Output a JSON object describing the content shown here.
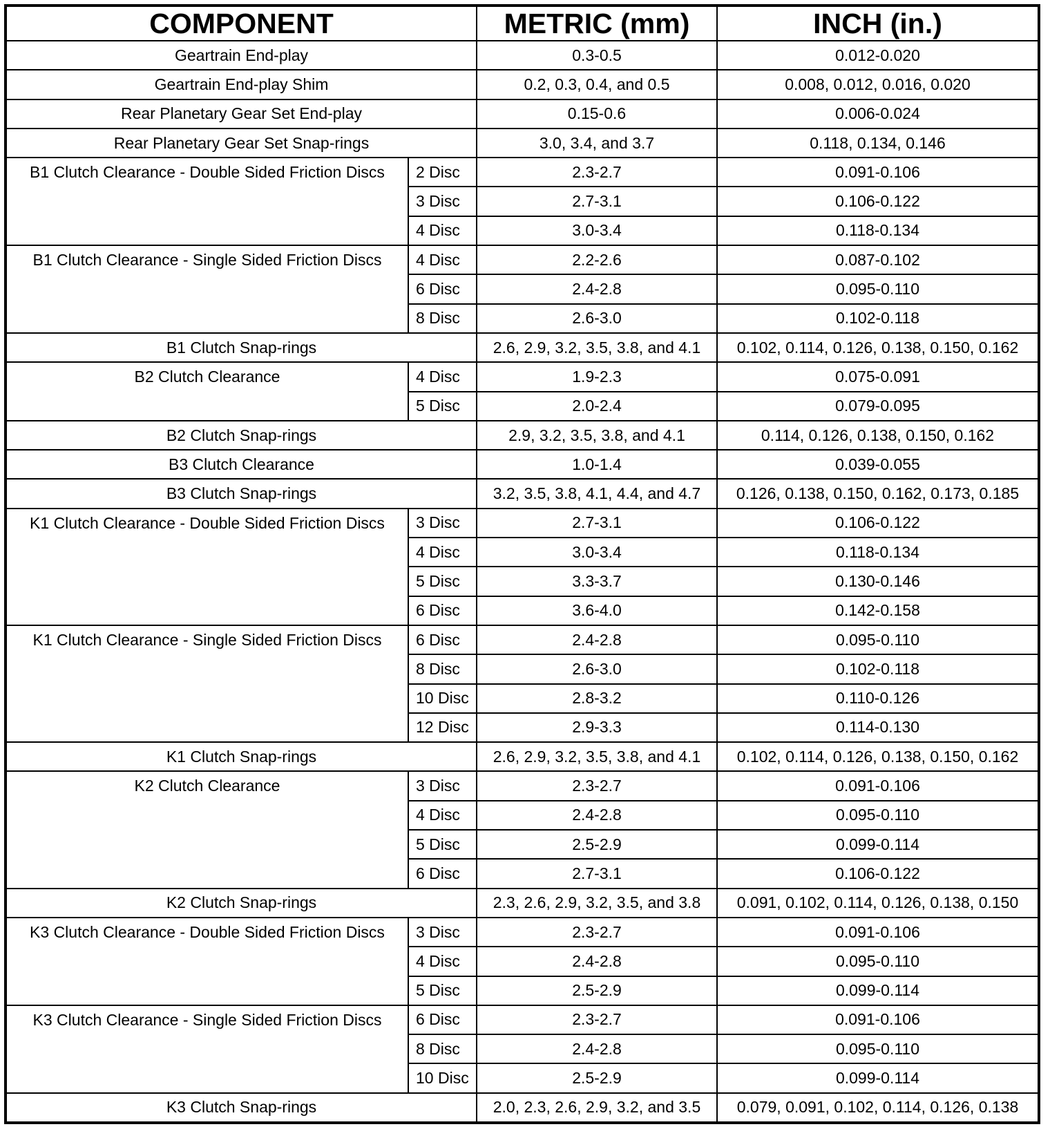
{
  "headers": {
    "component": "COMPONENT",
    "metric": "METRIC (mm)",
    "inch": "INCH (in.)"
  },
  "groups": [
    {
      "component": "Geartrain End-play",
      "rows": [
        {
          "disc": null,
          "metric": "0.3-0.5",
          "inch": "0.012-0.020"
        }
      ]
    },
    {
      "component": "Geartrain End-play Shim",
      "rows": [
        {
          "disc": null,
          "metric": "0.2, 0.3, 0.4, and 0.5",
          "inch": "0.008, 0.012, 0.016, 0.020"
        }
      ]
    },
    {
      "component": "Rear Planetary Gear Set End-play",
      "rows": [
        {
          "disc": null,
          "metric": "0.15-0.6",
          "inch": "0.006-0.024"
        }
      ]
    },
    {
      "component": "Rear Planetary Gear Set Snap-rings",
      "rows": [
        {
          "disc": null,
          "metric": "3.0, 3.4, and 3.7",
          "inch": "0.118, 0.134, 0.146"
        }
      ]
    },
    {
      "component": "B1 Clutch Clearance - Double Sided Friction Discs",
      "rows": [
        {
          "disc": "2 Disc",
          "metric": "2.3-2.7",
          "inch": "0.091-0.106"
        },
        {
          "disc": "3 Disc",
          "metric": "2.7-3.1",
          "inch": "0.106-0.122"
        },
        {
          "disc": "4 Disc",
          "metric": "3.0-3.4",
          "inch": "0.118-0.134"
        }
      ]
    },
    {
      "component": "B1 Clutch Clearance - Single Sided Friction Discs",
      "rows": [
        {
          "disc": "4 Disc",
          "metric": "2.2-2.6",
          "inch": "0.087-0.102"
        },
        {
          "disc": "6 Disc",
          "metric": "2.4-2.8",
          "inch": "0.095-0.110"
        },
        {
          "disc": "8 Disc",
          "metric": "2.6-3.0",
          "inch": "0.102-0.118"
        }
      ]
    },
    {
      "component": "B1 Clutch Snap-rings",
      "rows": [
        {
          "disc": null,
          "metric": "2.6, 2.9, 3.2, 3.5, 3.8, and 4.1",
          "inch": "0.102, 0.114, 0.126, 0.138, 0.150, 0.162"
        }
      ]
    },
    {
      "component": "B2 Clutch Clearance",
      "rows": [
        {
          "disc": "4 Disc",
          "metric": "1.9-2.3",
          "inch": "0.075-0.091"
        },
        {
          "disc": "5 Disc",
          "metric": "2.0-2.4",
          "inch": "0.079-0.095"
        }
      ]
    },
    {
      "component": "B2 Clutch Snap-rings",
      "rows": [
        {
          "disc": null,
          "metric": "2.9, 3.2, 3.5, 3.8, and 4.1",
          "inch": "0.114, 0.126, 0.138, 0.150, 0.162"
        }
      ]
    },
    {
      "component": "B3 Clutch Clearance",
      "rows": [
        {
          "disc": null,
          "metric": "1.0-1.4",
          "inch": "0.039-0.055"
        }
      ]
    },
    {
      "component": "B3 Clutch Snap-rings",
      "rows": [
        {
          "disc": null,
          "metric": "3.2, 3.5, 3.8, 4.1, 4.4, and 4.7",
          "inch": "0.126, 0.138, 0.150, 0.162, 0.173, 0.185"
        }
      ]
    },
    {
      "component": "K1 Clutch Clearance - Double Sided Friction Discs",
      "rows": [
        {
          "disc": "3 Disc",
          "metric": "2.7-3.1",
          "inch": "0.106-0.122"
        },
        {
          "disc": "4 Disc",
          "metric": "3.0-3.4",
          "inch": "0.118-0.134"
        },
        {
          "disc": "5 Disc",
          "metric": "3.3-3.7",
          "inch": "0.130-0.146"
        },
        {
          "disc": "6 Disc",
          "metric": "3.6-4.0",
          "inch": "0.142-0.158"
        }
      ]
    },
    {
      "component": "K1 Clutch Clearance - Single Sided Friction Discs",
      "rows": [
        {
          "disc": "6 Disc",
          "metric": "2.4-2.8",
          "inch": "0.095-0.110"
        },
        {
          "disc": "8 Disc",
          "metric": "2.6-3.0",
          "inch": "0.102-0.118"
        },
        {
          "disc": "10 Disc",
          "metric": "2.8-3.2",
          "inch": "0.110-0.126"
        },
        {
          "disc": "12 Disc",
          "metric": "2.9-3.3",
          "inch": "0.114-0.130"
        }
      ]
    },
    {
      "component": "K1 Clutch Snap-rings",
      "rows": [
        {
          "disc": null,
          "metric": "2.6, 2.9, 3.2, 3.5, 3.8, and 4.1",
          "inch": "0.102, 0.114, 0.126, 0.138, 0.150, 0.162"
        }
      ]
    },
    {
      "component": "K2 Clutch Clearance",
      "rows": [
        {
          "disc": "3 Disc",
          "metric": "2.3-2.7",
          "inch": "0.091-0.106"
        },
        {
          "disc": "4 Disc",
          "metric": "2.4-2.8",
          "inch": "0.095-0.110"
        },
        {
          "disc": "5 Disc",
          "metric": "2.5-2.9",
          "inch": "0.099-0.114"
        },
        {
          "disc": "6 Disc",
          "metric": "2.7-3.1",
          "inch": "0.106-0.122"
        }
      ]
    },
    {
      "component": "K2 Clutch Snap-rings",
      "rows": [
        {
          "disc": null,
          "metric": "2.3, 2.6, 2.9, 3.2, 3.5, and 3.8",
          "inch": "0.091, 0.102, 0.114, 0.126, 0.138, 0.150"
        }
      ]
    },
    {
      "component": "K3 Clutch Clearance - Double Sided Friction Discs",
      "rows": [
        {
          "disc": "3 Disc",
          "metric": "2.3-2.7",
          "inch": "0.091-0.106"
        },
        {
          "disc": "4 Disc",
          "metric": "2.4-2.8",
          "inch": "0.095-0.110"
        },
        {
          "disc": "5 Disc",
          "metric": "2.5-2.9",
          "inch": "0.099-0.114"
        }
      ]
    },
    {
      "component": "K3 Clutch Clearance - Single Sided Friction Discs",
      "rows": [
        {
          "disc": "6 Disc",
          "metric": "2.3-2.7",
          "inch": "0.091-0.106"
        },
        {
          "disc": "8 Disc",
          "metric": "2.4-2.8",
          "inch": "0.095-0.110"
        },
        {
          "disc": "10 Disc",
          "metric": "2.5-2.9",
          "inch": "0.099-0.114"
        }
      ]
    },
    {
      "component": "K3 Clutch Snap-rings",
      "rows": [
        {
          "disc": null,
          "metric": "2.0, 2.3, 2.6, 2.9, 3.2, and 3.5",
          "inch": "0.079, 0.091, 0.102, 0.114, 0.126, 0.138"
        }
      ]
    }
  ]
}
